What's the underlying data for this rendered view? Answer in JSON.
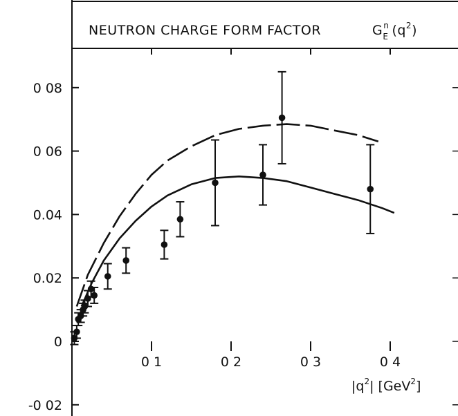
{
  "chart_data": {
    "type": "scatter",
    "title": "NEUTRON CHARGE FORM FACTOR",
    "title_symbol": {
      "base": "G",
      "sup": "n",
      "sub": "E",
      "arg": "(q",
      "arg_sup": "2",
      "close": ")"
    },
    "xlabel": {
      "prefix": "|q",
      "prefix_sup": "2",
      "middle": "| [GeV",
      "middle_sup": "2",
      "suffix": "]"
    },
    "ylabel": "",
    "xlim": [
      0,
      0.45
    ],
    "ylim": [
      -0.02,
      0.1
    ],
    "x_ticks": [
      {
        "value": 0.1,
        "label": "0 1"
      },
      {
        "value": 0.2,
        "label": "0 2"
      },
      {
        "value": 0.3,
        "label": "0 3"
      },
      {
        "value": 0.4,
        "label": "0 4"
      }
    ],
    "y_ticks": [
      {
        "value": -0.02,
        "label": "-0 02"
      },
      {
        "value": 0,
        "label": "0"
      },
      {
        "value": 0.02,
        "label": "0.02"
      },
      {
        "value": 0.04,
        "label": "0.04"
      },
      {
        "value": 0.06,
        "label": "0 06"
      },
      {
        "value": 0.08,
        "label": "0 08"
      }
    ],
    "grid": false,
    "points": [
      {
        "x": 0.003,
        "y": 0.001,
        "err": 0.002
      },
      {
        "x": 0.006,
        "y": 0.003,
        "err": 0.002
      },
      {
        "x": 0.008,
        "y": 0.007,
        "err": 0.002
      },
      {
        "x": 0.011,
        "y": 0.008,
        "err": 0.002
      },
      {
        "x": 0.014,
        "y": 0.01,
        "err": 0.002
      },
      {
        "x": 0.016,
        "y": 0.011,
        "err": 0.002
      },
      {
        "x": 0.02,
        "y": 0.0135,
        "err": 0.0025
      },
      {
        "x": 0.024,
        "y": 0.0165,
        "err": 0.0025
      },
      {
        "x": 0.028,
        "y": 0.0145,
        "err": 0.0025
      },
      {
        "x": 0.045,
        "y": 0.0205,
        "err": 0.004
      },
      {
        "x": 0.068,
        "y": 0.0255,
        "err": 0.004
      },
      {
        "x": 0.116,
        "y": 0.0305,
        "err": 0.0045
      },
      {
        "x": 0.136,
        "y": 0.0385,
        "err": 0.0055
      },
      {
        "x": 0.18,
        "y": 0.05,
        "err": 0.0135
      },
      {
        "x": 0.24,
        "y": 0.0525,
        "err": 0.0095
      },
      {
        "x": 0.264,
        "y": 0.0705,
        "err": 0.0145
      },
      {
        "x": 0.375,
        "y": 0.048,
        "err": 0.014
      }
    ],
    "series": [
      {
        "style": "dashed",
        "x": [
          0.006,
          0.02,
          0.04,
          0.06,
          0.08,
          0.1,
          0.12,
          0.15,
          0.18,
          0.21,
          0.24,
          0.27,
          0.3,
          0.33,
          0.36,
          0.385
        ],
        "y": [
          0.011,
          0.021,
          0.031,
          0.0395,
          0.0465,
          0.0525,
          0.057,
          0.0615,
          0.065,
          0.067,
          0.068,
          0.0685,
          0.068,
          0.0665,
          0.065,
          0.063
        ]
      },
      {
        "style": "solid",
        "x": [
          0.012,
          0.025,
          0.04,
          0.06,
          0.08,
          0.1,
          0.12,
          0.15,
          0.18,
          0.21,
          0.24,
          0.27,
          0.3,
          0.33,
          0.36,
          0.39,
          0.405
        ],
        "y": [
          0.011,
          0.0185,
          0.0255,
          0.0325,
          0.038,
          0.0425,
          0.046,
          0.0495,
          0.0515,
          0.052,
          0.0515,
          0.0505,
          0.0485,
          0.0465,
          0.0445,
          0.042,
          0.0405
        ]
      }
    ]
  }
}
